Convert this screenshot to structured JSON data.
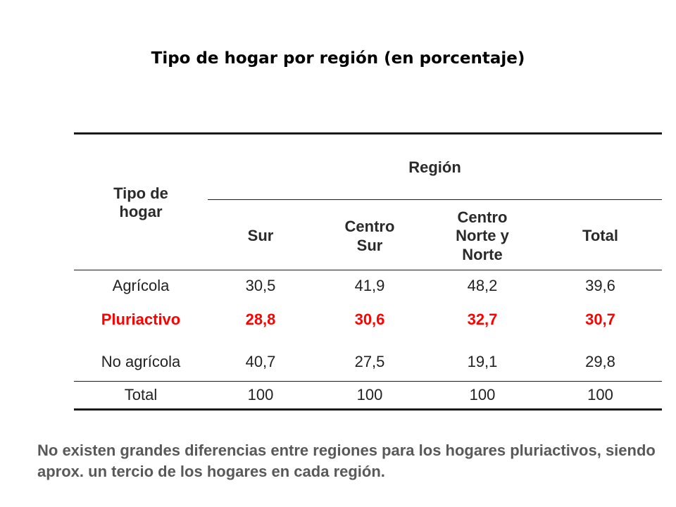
{
  "title": "Tipo de hogar por región (en porcentaje)",
  "table": {
    "row_header": "Tipo de\nhogar",
    "group_header": "Región",
    "columns": [
      "Sur",
      "Centro\nSur",
      "Centro\nNorte y\nNorte",
      "Total"
    ],
    "rows": [
      {
        "label": "Agrícola",
        "values": [
          "30,5",
          "41,9",
          "48,2",
          "39,6"
        ],
        "highlight": false
      },
      {
        "label": "Pluriactivo",
        "values": [
          "28,8",
          "30,6",
          "32,7",
          "30,7"
        ],
        "highlight": true
      },
      {
        "label": "No agrícola",
        "values": [
          "40,7",
          "27,5",
          "19,1",
          "29,8"
        ],
        "highlight": false
      },
      {
        "label": "Total",
        "values": [
          "100",
          "100",
          "100",
          "100"
        ],
        "highlight": false
      }
    ],
    "highlight_color": "#ff0000"
  },
  "note": "No existen grandes diferencias entre regiones para los hogares pluriactivos, siendo aprox. un tercio de los hogares en cada región."
}
